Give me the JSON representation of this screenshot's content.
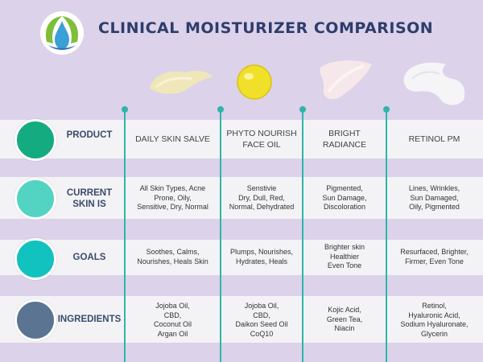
{
  "title": "CLINICAL MOISTURIZER COMPARISON",
  "colors": {
    "background": "#dcd2ea",
    "title": "#2e3d6b",
    "accent_line": "#2fb5a8",
    "band": "#f3f3f6",
    "product_circle": "#14ab80",
    "skin_circle": "#53d3c2",
    "goals_circle": "#11c2bf",
    "ingredients_circle": "#5b7492"
  },
  "rows": {
    "product": "PRODUCT",
    "skin": "CURRENT\nSKIN IS",
    "goals": "GOALS",
    "ingredients": "INGREDIENTS"
  },
  "products": [
    {
      "name": "DAILY SKIN SALVE",
      "skin": "All Skin Types, Acne\nProne, Oily,\nSensitive, Dry, Normal",
      "goals": "Soothes, Calms,\nNourishes, Heals Skin",
      "ingredients": "Jojoba Oil,\nCBD,\nCoconut Oil\nArgan Oil"
    },
    {
      "name": "PHYTO NOURISH\nFACE OIL",
      "skin": "Senstivie\nDry, Dull, Red,\nNormal, Dehydrated",
      "goals": "Plumps, Nourishes,\nHydrates, Heals",
      "ingredients": "Jojoba Oil,\nCBD,\nDaikon Seed Oil\nCoQ10"
    },
    {
      "name": "BRIGHT\nRADIANCE",
      "skin": "Pigmented,\nSun Damage,\nDiscoloration",
      "goals": "Brighter skin\nHealthier\nEven Tone",
      "ingredients": "Kojic Acid,\nGreen Tea,\nNiacin"
    },
    {
      "name": "RETINOL PM",
      "skin": "Lines, Wrinkles,\nSun Damaged,\nOily, Pigmented",
      "goals": "Resurfaced, Brighter,\nFirmer, Even Tone",
      "ingredients": "Retinol,\nHyaluronic Acid,\nSodium Hyaluronate,\nGlycerin"
    }
  ]
}
